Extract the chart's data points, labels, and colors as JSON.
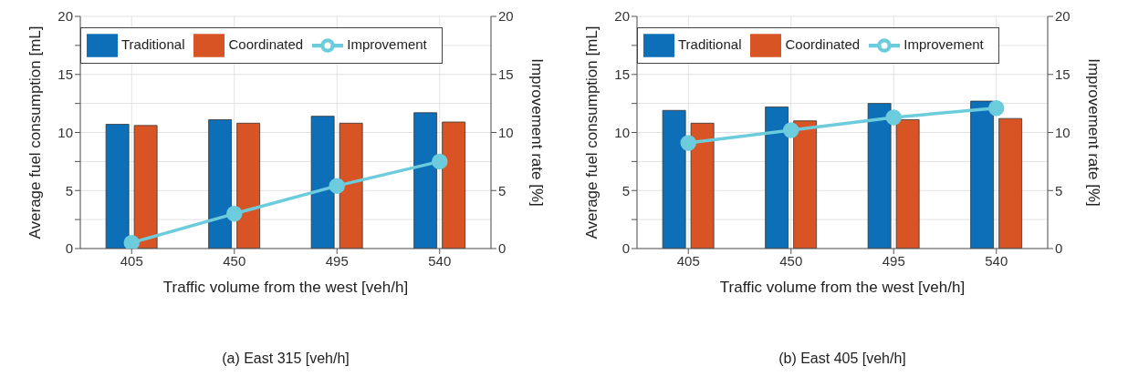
{
  "chart_data": [
    {
      "type": "bar",
      "title": "(a) East  315 [veh/h]",
      "xlabel": "Traffic volume from the west  [veh/h]",
      "ylabel": "Average fuel consumption [mL]",
      "y2label": "Improvement rate [%]",
      "categories": [
        "405",
        "450",
        "495",
        "540"
      ],
      "series": [
        {
          "name": "Traditional",
          "color": "#0c6fb8",
          "values": [
            10.7,
            11.1,
            11.4,
            11.7
          ]
        },
        {
          "name": "Coordinated",
          "color": "#d95425",
          "values": [
            10.6,
            10.8,
            10.8,
            10.9
          ]
        },
        {
          "name": "Improvement",
          "type": "line",
          "axis": "y2",
          "color": "#6dccdc",
          "values": [
            0.5,
            3.0,
            5.4,
            7.5
          ]
        }
      ],
      "ylim": [
        0,
        20
      ],
      "yticks": [
        0,
        {
          "value": 2.5,
          "label": null
        },
        5,
        {
          "value": 7.5,
          "label": null
        },
        10,
        {
          "value": 12.5,
          "label": null
        },
        15,
        {
          "value": 17.5,
          "label": null
        },
        20
      ],
      "y2lim": [
        0,
        20
      ],
      "y2ticks": [
        0,
        5,
        10,
        15,
        20
      ],
      "grid": true,
      "legend": "top",
      "marker": "circle",
      "line_style": "solid"
    },
    {
      "type": "bar",
      "title": "(b) East 405 [veh/h]",
      "xlabel": "Traffic volume from the west  [veh/h]",
      "ylabel": "Average fuel consumption [mL]",
      "y2label": "Improvement rate [%]",
      "categories": [
        "405",
        "450",
        "495",
        "540"
      ],
      "series": [
        {
          "name": "Traditional",
          "color": "#0c6fb8",
          "values": [
            11.9,
            12.2,
            12.5,
            12.7
          ]
        },
        {
          "name": "Coordinated",
          "color": "#d95425",
          "values": [
            10.8,
            11.0,
            11.1,
            11.2
          ]
        },
        {
          "name": "Improvement",
          "type": "line",
          "axis": "y2",
          "color": "#6dccdc",
          "values": [
            9.1,
            10.2,
            11.3,
            12.1
          ]
        }
      ],
      "ylim": [
        0,
        20
      ],
      "yticks": [
        0,
        {
          "value": 2.5,
          "label": null
        },
        5,
        {
          "value": 7.5,
          "label": null
        },
        10,
        {
          "value": 12.5,
          "label": null
        },
        15,
        {
          "value": 17.5,
          "label": null
        },
        20
      ],
      "y2lim": [
        0,
        20
      ],
      "y2ticks": [
        0,
        5,
        10,
        15,
        20
      ],
      "grid": true,
      "legend": "top",
      "marker": "circle",
      "line_style": "solid"
    }
  ]
}
